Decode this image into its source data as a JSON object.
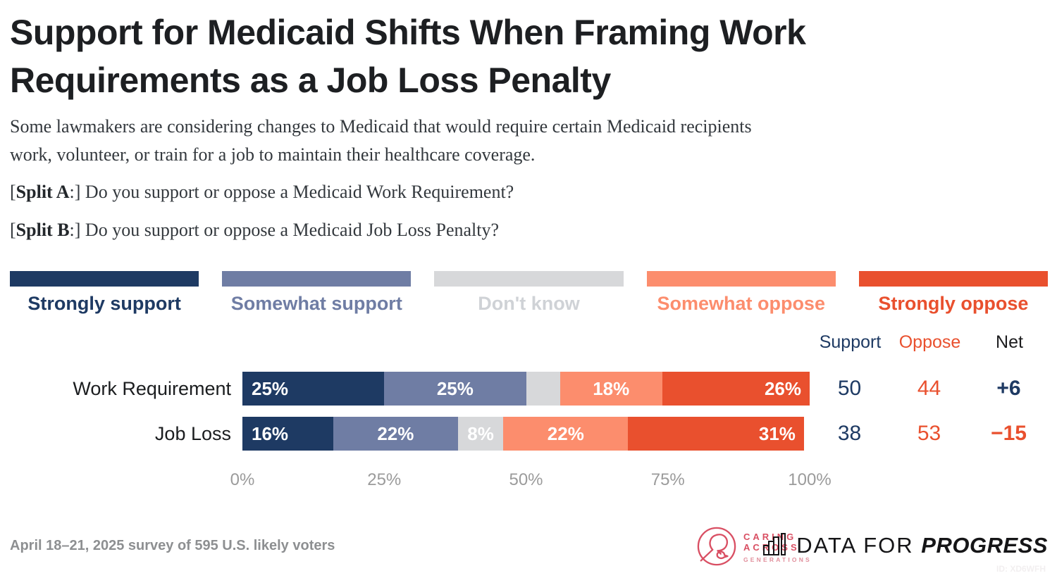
{
  "title": {
    "line1": "Support for Medicaid Shifts When Framing Work",
    "line2": "Requirements as a Job Loss Penalty"
  },
  "description": {
    "line1": "Some lawmakers are considering changes to Medicaid that would require certain Medicaid recipients",
    "line2": "work, volunteer, or train for a job to maintain their healthcare coverage."
  },
  "split_a": {
    "bracket_open": "[",
    "bold": "Split A",
    "rest": ":] Do you support or oppose a Medicaid Work Requirement?"
  },
  "split_b": {
    "bracket_open": "[",
    "bold": "Split B",
    "rest": ":] Do you support or oppose a Medicaid Job Loss Penalty?"
  },
  "colors": {
    "navy": "#1e3a63",
    "slate": "#6f7da4",
    "gray": "#d7d8da",
    "gray_label": "#cfd2d6",
    "salmon": "#fc8d6d",
    "red": "#e9502e",
    "net_black": "#1c1c1e",
    "caring_red": "#d94f63"
  },
  "legend": {
    "items": [
      {
        "label": "Strongly support",
        "color": "#1e3a63",
        "text_color": "#1e3a63"
      },
      {
        "label": "Somewhat support",
        "color": "#6f7da4",
        "text_color": "#6f7da4"
      },
      {
        "label": "Don't know",
        "color": "#d7d8da",
        "text_color": "#cfd2d6"
      },
      {
        "label": "Somewhat oppose",
        "color": "#fc8d6d",
        "text_color": "#fc8d6d"
      },
      {
        "label": "Strongly oppose",
        "color": "#e9502e",
        "text_color": "#e9502e"
      }
    ]
  },
  "chart_data": {
    "type": "bar",
    "stacked": true,
    "orientation": "horizontal",
    "xlim": [
      0,
      100
    ],
    "xticks": [
      {
        "pct": 0,
        "label": "0%"
      },
      {
        "pct": 25,
        "label": "25%"
      },
      {
        "pct": 50,
        "label": "50%"
      },
      {
        "pct": 75,
        "label": "75%"
      },
      {
        "pct": 100,
        "label": "100%"
      }
    ],
    "categories": [
      "Work Requirement",
      "Job Loss"
    ],
    "series": [
      {
        "name": "Strongly support",
        "color": "#1e3a63",
        "values": [
          25,
          16
        ]
      },
      {
        "name": "Somewhat support",
        "color": "#6f7da4",
        "values": [
          25,
          22
        ]
      },
      {
        "name": "Don't know",
        "color": "#d7d8da",
        "values": [
          6,
          8
        ]
      },
      {
        "name": "Somewhat oppose",
        "color": "#fc8d6d",
        "values": [
          18,
          22
        ]
      },
      {
        "name": "Strongly oppose",
        "color": "#e9502e",
        "values": [
          26,
          31
        ]
      }
    ],
    "summary_headers": [
      {
        "label": "Support",
        "color": "#1e3a63"
      },
      {
        "label": "Oppose",
        "color": "#e9502e"
      },
      {
        "label": "Net",
        "color": "#1c1c1e"
      }
    ],
    "rows": [
      {
        "label": "Work Requirement",
        "segments": [
          {
            "value": 25,
            "text": "25%",
            "color": "#1e3a63"
          },
          {
            "value": 25,
            "text": "25%",
            "color": "#6f7da4"
          },
          {
            "value": 6,
            "text": "",
            "color": "#d7d8da"
          },
          {
            "value": 18,
            "text": "18%",
            "color": "#fc8d6d"
          },
          {
            "value": 26,
            "text": "26%",
            "color": "#e9502e"
          }
        ],
        "support": "50",
        "oppose": "44",
        "net": "+6",
        "net_color": "#1e3a63"
      },
      {
        "label": "Job Loss",
        "segments": [
          {
            "value": 16,
            "text": "16%",
            "color": "#1e3a63"
          },
          {
            "value": 22,
            "text": "22%",
            "color": "#6f7da4"
          },
          {
            "value": 8,
            "text": "8%",
            "color": "#d7d8da"
          },
          {
            "value": 22,
            "text": "22%",
            "color": "#fc8d6d"
          },
          {
            "value": 31,
            "text": "31%",
            "color": "#e9502e"
          }
        ],
        "support": "38",
        "oppose": "53",
        "net": "−15",
        "net_color": "#e9502e"
      }
    ],
    "value_colors": {
      "support": "#1e3a63",
      "oppose": "#e9502e"
    }
  },
  "footer": {
    "survey_note": "April 18–21, 2025 survey of 595 U.S. likely voters",
    "caring_logo": {
      "line1": "CARING",
      "line2": "ACROSS",
      "sub": "GENERATIONS"
    },
    "dfp_logo": {
      "light": "DATA FOR ",
      "bold": "PROGRESS"
    },
    "chart_id": "ID: XD6WFH"
  }
}
